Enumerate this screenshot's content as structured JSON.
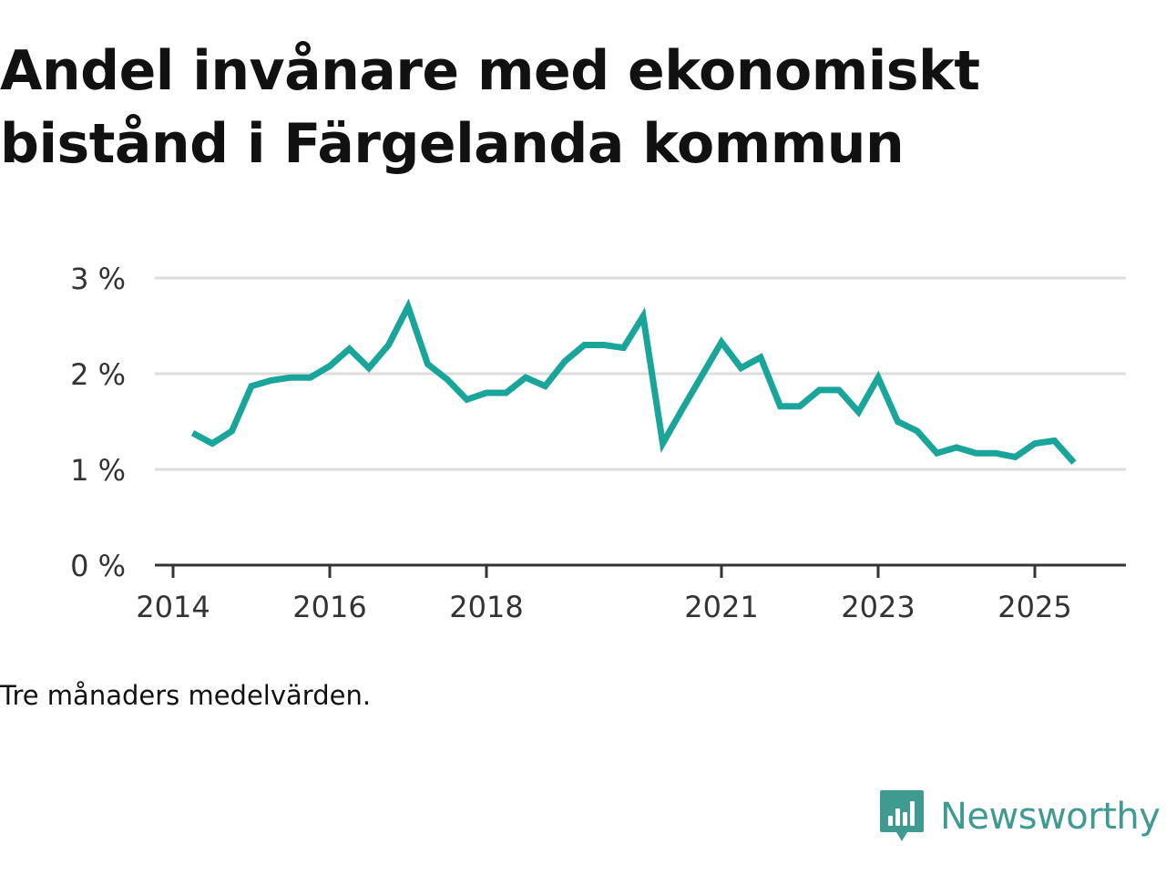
{
  "title": "Andel invånare med ekonomiskt bistånd i Färgelanda kommun",
  "note": "Tre månaders medelvärden.",
  "brand": {
    "name": "Newsworthy",
    "logo_icon": "bar-chart-speech-bubble-icon"
  },
  "colors": {
    "line": "#1aa59a",
    "grid": "#dddddd",
    "axis": "#333333",
    "brand": "#3f9a92"
  },
  "chart_data": {
    "type": "line",
    "title": "Andel invånare med ekonomiskt bistånd i Färgelanda kommun",
    "xlabel": "",
    "ylabel": "",
    "xlim": [
      2013.85,
      2026.3
    ],
    "ylim": [
      0,
      3
    ],
    "y_ticks": [
      0,
      1,
      2,
      3
    ],
    "y_tick_labels": [
      "0 %",
      "1 %",
      "2 %",
      "3 %"
    ],
    "x_ticks": [
      2014,
      2016,
      2018,
      2021,
      2023,
      2025
    ],
    "x_tick_labels": [
      "2014",
      "2016",
      "2018",
      "2021",
      "2023",
      "2025"
    ],
    "grid": true,
    "legend": "none",
    "series": [
      {
        "name": "Andel invånare med ekonomiskt bistånd",
        "x": [
          2014.25,
          2014.5,
          2014.75,
          2015.0,
          2015.25,
          2015.5,
          2015.75,
          2016.0,
          2016.25,
          2016.5,
          2016.75,
          2017.0,
          2017.25,
          2017.5,
          2017.75,
          2018.0,
          2018.25,
          2018.5,
          2018.75,
          2019.0,
          2019.25,
          2019.5,
          2019.75,
          2020.0,
          2020.25,
          2020.5,
          2020.75,
          2021.0,
          2021.25,
          2021.5,
          2021.75,
          2022.0,
          2022.25,
          2022.5,
          2022.75,
          2023.0,
          2023.25,
          2023.5,
          2023.75,
          2024.0,
          2024.25,
          2024.5,
          2024.75,
          2025.0,
          2025.25,
          2025.5
        ],
        "values": [
          1.38,
          1.27,
          1.4,
          1.87,
          1.93,
          1.96,
          1.96,
          2.08,
          2.26,
          2.06,
          2.3,
          2.7,
          2.1,
          1.94,
          1.73,
          1.8,
          1.8,
          1.96,
          1.87,
          2.13,
          2.3,
          2.3,
          2.27,
          2.6,
          1.27,
          1.63,
          1.98,
          2.33,
          2.06,
          2.17,
          1.66,
          1.66,
          1.83,
          1.83,
          1.6,
          1.96,
          1.5,
          1.4,
          1.17,
          1.23,
          1.17,
          1.17,
          1.13,
          1.27,
          1.3,
          1.07
        ]
      }
    ]
  }
}
